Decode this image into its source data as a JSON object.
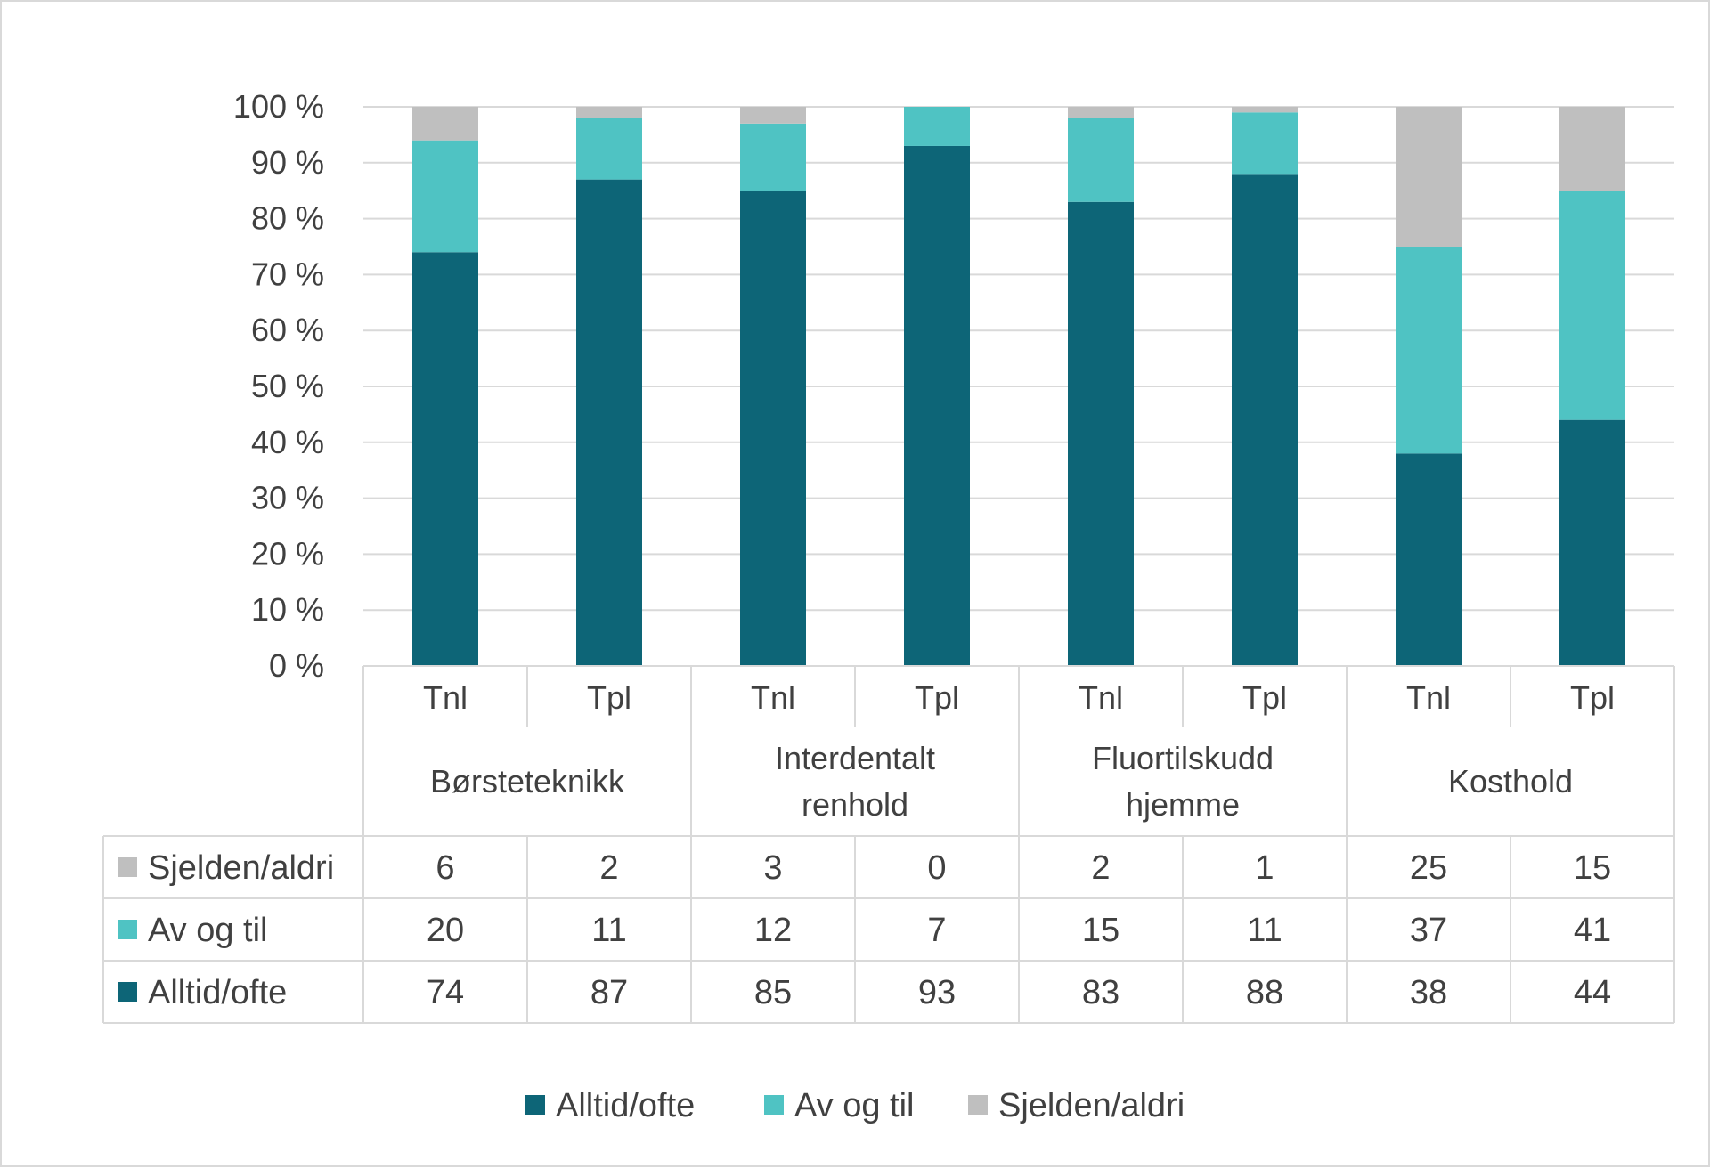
{
  "chart_data": {
    "type": "bar",
    "stacked": true,
    "percent_stacked": true,
    "title": "",
    "xlabel": "",
    "ylabel": "",
    "ylim": [
      0,
      100
    ],
    "y_ticks": [
      "0 %",
      "10 %",
      "20 %",
      "30 %",
      "40 %",
      "50 %",
      "60 %",
      "70 %",
      "80 %",
      "90 %",
      "100 %"
    ],
    "grid": true,
    "legend_position": "bottom",
    "groups": [
      {
        "name": "Børsteteknikk",
        "lines": [
          "Børsteteknikk"
        ]
      },
      {
        "name": "Interdentalt renhold",
        "lines": [
          "Interdentalt",
          "renhold"
        ]
      },
      {
        "name": "Fluortilskudd hjemme",
        "lines": [
          "Fluortilskudd",
          "hjemme"
        ]
      },
      {
        "name": "Kosthold",
        "lines": [
          "Kosthold"
        ]
      }
    ],
    "categories": [
      "Tnl",
      "Tpl",
      "Tnl",
      "Tpl",
      "Tnl",
      "Tpl",
      "Tnl",
      "Tpl"
    ],
    "series": [
      {
        "name": "Alltid/ofte",
        "color": "#0d6577",
        "values": [
          74,
          87,
          85,
          93,
          83,
          88,
          38,
          44
        ]
      },
      {
        "name": "Av og til",
        "color": "#4fc3c3",
        "values": [
          20,
          11,
          12,
          7,
          15,
          11,
          37,
          41
        ]
      },
      {
        "name": "Sjelden/aldri",
        "color": "#bfbfbf",
        "values": [
          6,
          2,
          3,
          0,
          2,
          1,
          25,
          15
        ]
      }
    ],
    "table_row_order": [
      "Sjelden/aldri",
      "Av og til",
      "Alltid/ofte"
    ],
    "legend_order": [
      "Alltid/ofte",
      "Av og til",
      "Sjelden/aldri"
    ]
  }
}
